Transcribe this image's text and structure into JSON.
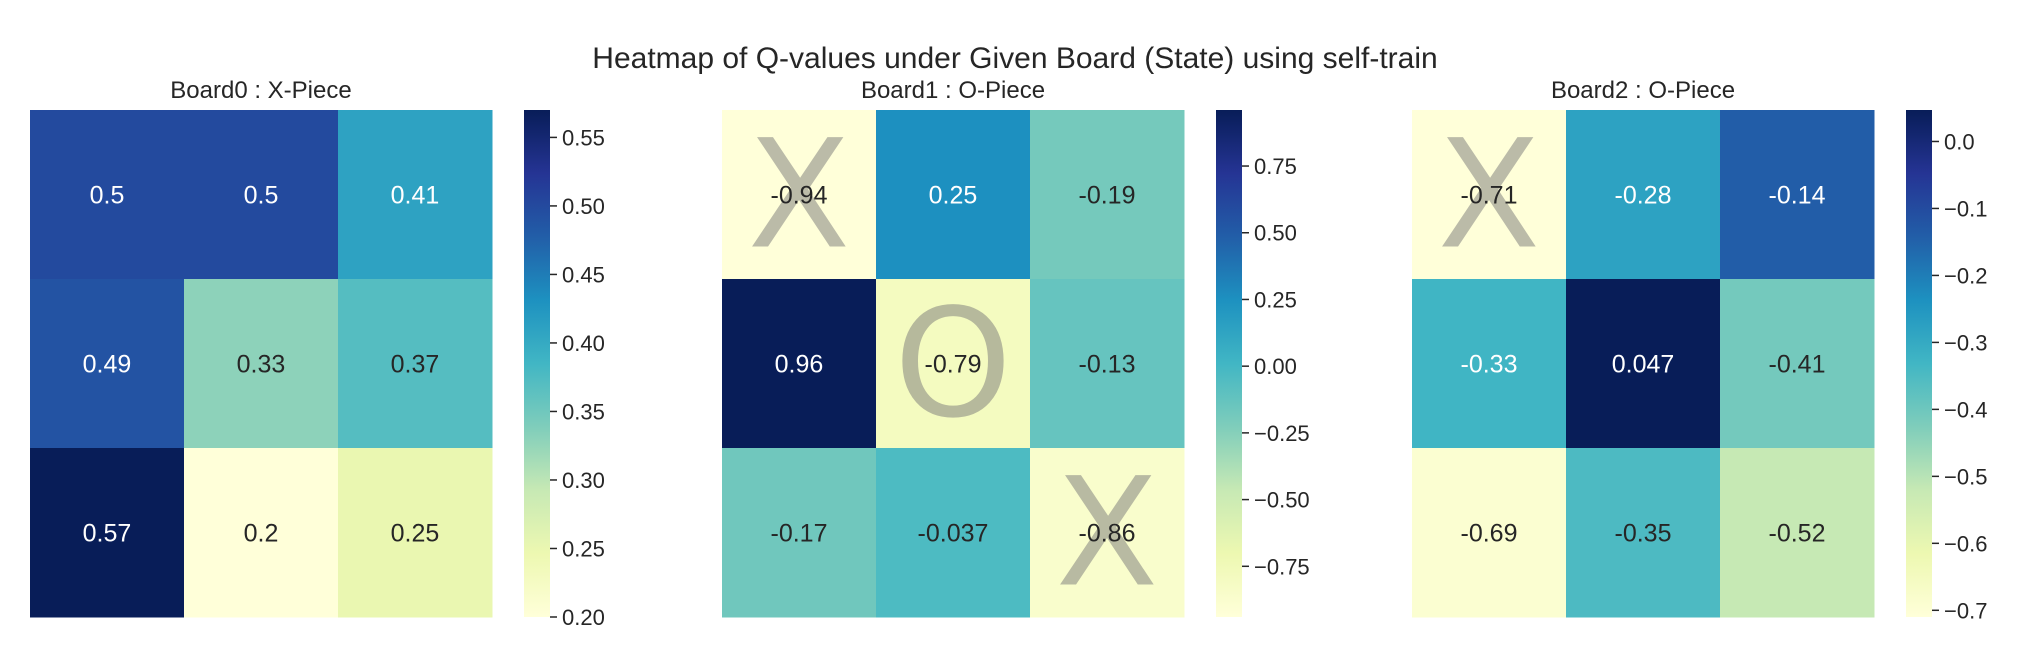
{
  "figure": {
    "title": "Heatmap of Q-values under Given Board (State) using self-train"
  },
  "chart_data": [
    {
      "type": "heatmap",
      "title": "Board0 : X-Piece",
      "rows": 3,
      "cols": 3,
      "values": [
        [
          0.5,
          0.5,
          0.41
        ],
        [
          0.49,
          0.33,
          0.37
        ],
        [
          0.57,
          0.2,
          0.25
        ]
      ],
      "labels": [
        [
          "0.5",
          "0.5",
          "0.41"
        ],
        [
          "0.49",
          "0.33",
          "0.37"
        ],
        [
          "0.57",
          "0.2",
          "0.25"
        ]
      ],
      "pieces": [
        [
          "",
          "",
          ""
        ],
        [
          "",
          "",
          ""
        ],
        [
          "",
          "",
          ""
        ]
      ],
      "vmin": 0.2,
      "vmax": 0.57,
      "colorbar_ticks": [
        0.2,
        0.25,
        0.3,
        0.35,
        0.4,
        0.45,
        0.5,
        0.55
      ],
      "colorbar_tick_labels": [
        "0.20",
        "0.25",
        "0.30",
        "0.35",
        "0.40",
        "0.45",
        "0.50",
        "0.55"
      ],
      "colormap": "YlGnBu"
    },
    {
      "type": "heatmap",
      "title": "Board1 : O-Piece",
      "rows": 3,
      "cols": 3,
      "values": [
        [
          -0.94,
          0.25,
          -0.19
        ],
        [
          0.96,
          -0.79,
          -0.13
        ],
        [
          -0.17,
          -0.037,
          -0.86
        ]
      ],
      "labels": [
        [
          "-0.94",
          "0.25",
          "-0.19"
        ],
        [
          "0.96",
          "-0.79",
          "-0.13"
        ],
        [
          "-0.17",
          "-0.037",
          "-0.86"
        ]
      ],
      "pieces": [
        [
          "X",
          "",
          ""
        ],
        [
          "",
          "O",
          ""
        ],
        [
          "",
          "",
          "X"
        ]
      ],
      "vmin": -0.94,
      "vmax": 0.96,
      "colorbar_ticks": [
        -0.75,
        -0.5,
        -0.25,
        0.0,
        0.25,
        0.5,
        0.75
      ],
      "colorbar_tick_labels": [
        "−0.75",
        "−0.50",
        "−0.25",
        "0.00",
        "0.25",
        "0.50",
        "0.75"
      ],
      "colormap": "YlGnBu"
    },
    {
      "type": "heatmap",
      "title": "Board2 : O-Piece",
      "rows": 3,
      "cols": 3,
      "values": [
        [
          -0.71,
          -0.28,
          -0.14
        ],
        [
          -0.33,
          0.047,
          -0.41
        ],
        [
          -0.69,
          -0.35,
          -0.52
        ]
      ],
      "labels": [
        [
          "-0.71",
          "-0.28",
          "-0.14"
        ],
        [
          "-0.33",
          "0.047",
          "-0.41"
        ],
        [
          "-0.69",
          "-0.35",
          "-0.52"
        ]
      ],
      "pieces": [
        [
          "X",
          "",
          ""
        ],
        [
          "",
          "",
          ""
        ],
        [
          "",
          "",
          ""
        ]
      ],
      "vmin": -0.71,
      "vmax": 0.047,
      "colorbar_ticks": [
        -0.7,
        -0.6,
        -0.5,
        -0.4,
        -0.3,
        -0.2,
        -0.1,
        0.0
      ],
      "colorbar_tick_labels": [
        "−0.7",
        "−0.6",
        "−0.5",
        "−0.4",
        "−0.3",
        "−0.2",
        "−0.1",
        "0.0"
      ],
      "colormap": "YlGnBu"
    }
  ]
}
